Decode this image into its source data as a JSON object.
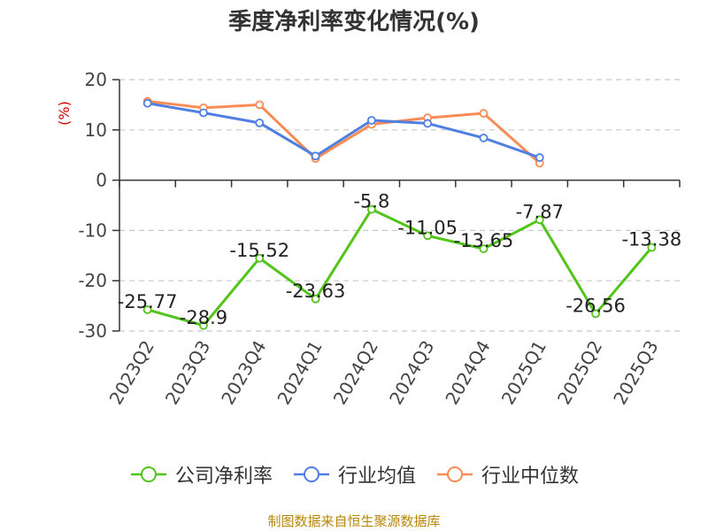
{
  "title": "季度净利率变化情况(%)",
  "source_note": "制图数据来自恒生聚源数据库",
  "chart_data": {
    "type": "line",
    "title": "季度净利率变化情况(%)",
    "ylabel": "(%)",
    "ylabel_color": "#cc0000",
    "categories": [
      "2023Q2",
      "2023Q3",
      "2023Q4",
      "2024Q1",
      "2024Q2",
      "2024Q3",
      "2024Q4",
      "2025Q1",
      "2025Q2",
      "2025Q3"
    ],
    "ylim": [
      -30,
      20
    ],
    "yticks": [
      20,
      10,
      0,
      -10,
      -20,
      -30
    ],
    "grid": true,
    "legend_position": "bottom",
    "series": [
      {
        "name": "公司净利率",
        "color": "#52c41a",
        "values": [
          -25.77,
          -28.9,
          -15.52,
          -23.63,
          -5.8,
          -11.05,
          -13.65,
          -7.87,
          -26.56,
          -13.38
        ],
        "labels": [
          "-25.77",
          "-28.9",
          "-15.52",
          "-23.63",
          "-5.8",
          "-11.05",
          "-13.65",
          "-7.87",
          "-26.56",
          "-13.38"
        ]
      },
      {
        "name": "行业均值",
        "color": "#4f7fe0",
        "values": [
          15.3,
          13.4,
          11.4,
          4.8,
          11.9,
          11.3,
          8.4,
          4.5,
          null,
          null
        ]
      },
      {
        "name": "行业中位数",
        "color": "#f98c55",
        "values": [
          15.7,
          14.4,
          15.0,
          4.3,
          11.1,
          12.4,
          13.3,
          3.4,
          null,
          null
        ]
      }
    ]
  }
}
